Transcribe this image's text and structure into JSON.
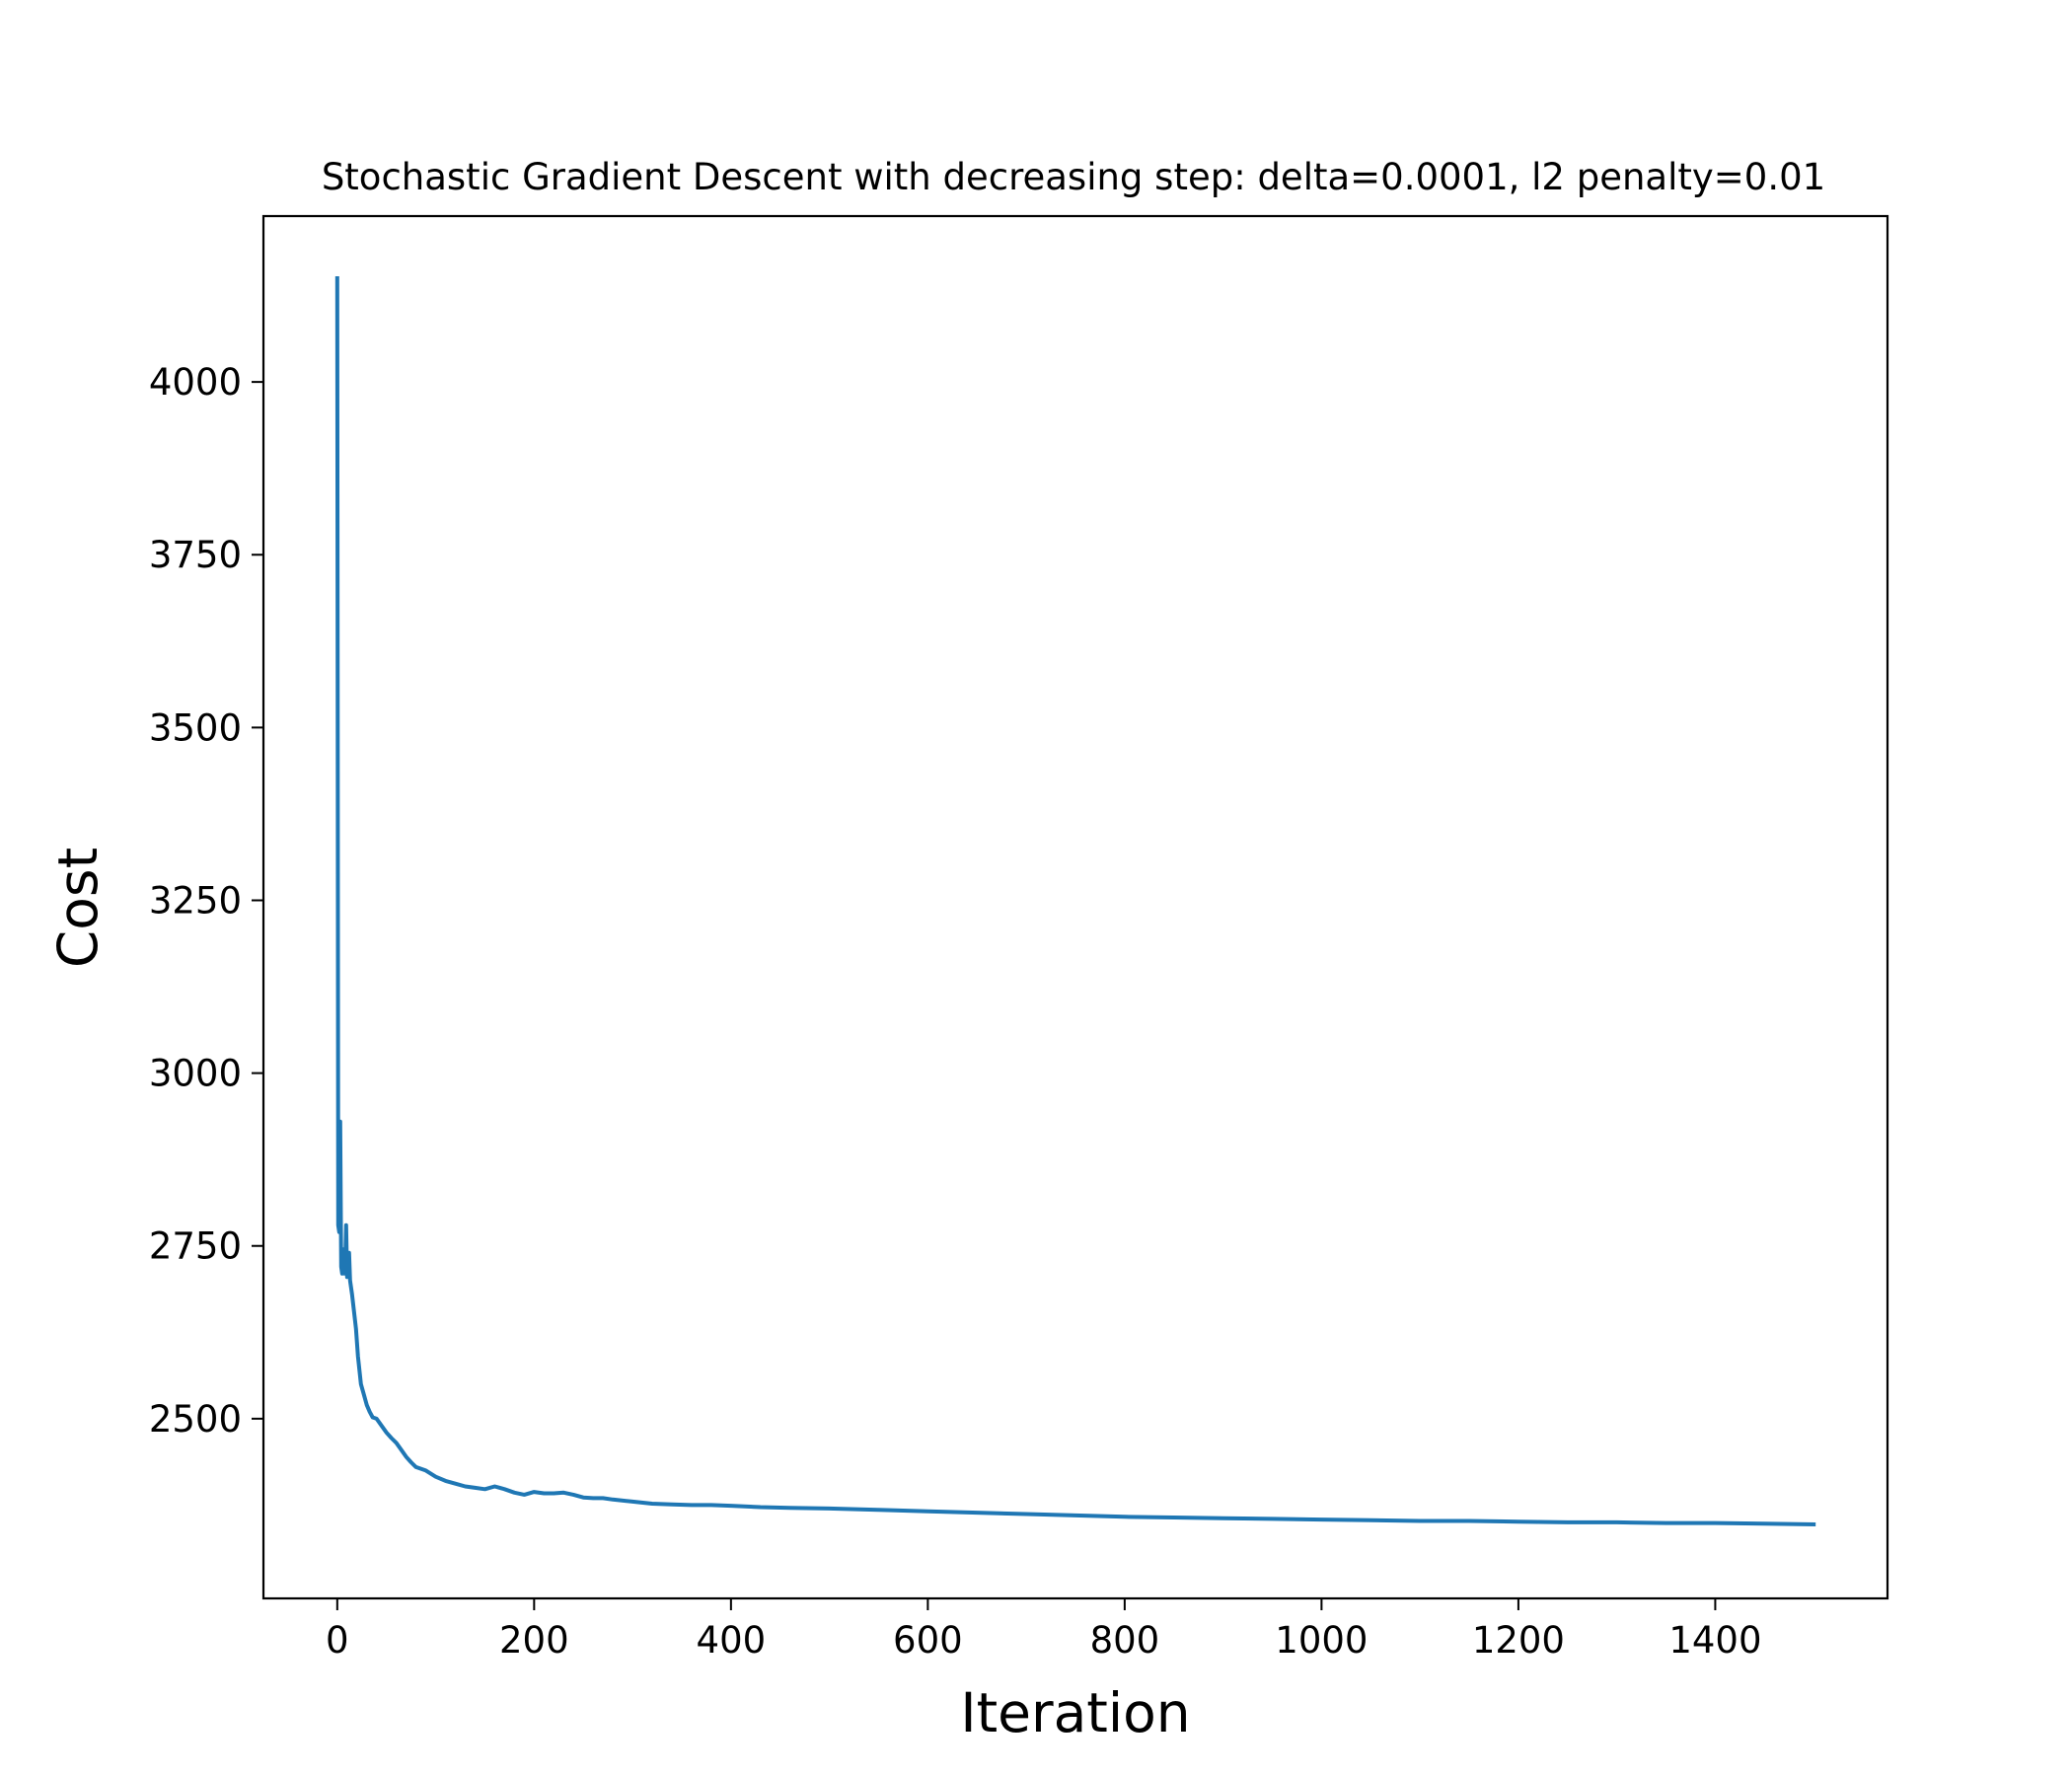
{
  "chart_data": {
    "type": "line",
    "title": "Stochastic Gradient Descent with decreasing step: delta=0.0001, l2 penalty=0.01",
    "xlabel": "Iteration",
    "ylabel": "Cost",
    "xlim": [
      -75,
      1575
    ],
    "ylim": [
      2240,
      4240
    ],
    "xticks": [
      0,
      200,
      400,
      600,
      800,
      1000,
      1200,
      1400
    ],
    "yticks": [
      2500,
      2750,
      3000,
      3250,
      3500,
      3750,
      4000
    ],
    "grid": false,
    "legend": "none",
    "series": [
      {
        "color": "#1f77b4",
        "x": [
          0,
          1,
          2,
          3,
          4,
          5,
          6,
          7,
          8,
          9,
          10,
          11,
          12,
          13,
          14,
          15,
          17,
          19,
          21,
          24,
          27,
          30,
          33,
          36,
          40,
          45,
          50,
          55,
          60,
          65,
          70,
          75,
          80,
          90,
          100,
          110,
          120,
          130,
          140,
          150,
          160,
          170,
          180,
          190,
          200,
          210,
          220,
          230,
          240,
          250,
          260,
          270,
          280,
          300,
          320,
          340,
          360,
          380,
          400,
          430,
          460,
          500,
          550,
          600,
          650,
          700,
          750,
          800,
          850,
          900,
          950,
          1000,
          1050,
          1100,
          1150,
          1200,
          1250,
          1300,
          1350,
          1400,
          1450,
          1500
        ],
        "values": [
          4150,
          2780,
          2770,
          2930,
          2720,
          2710,
          2745,
          2710,
          2720,
          2780,
          2705,
          2720,
          2740,
          2700,
          2690,
          2680,
          2655,
          2630,
          2590,
          2550,
          2535,
          2520,
          2510,
          2502,
          2500,
          2490,
          2480,
          2472,
          2465,
          2455,
          2445,
          2437,
          2430,
          2425,
          2416,
          2410,
          2406,
          2402,
          2400,
          2398,
          2402,
          2398,
          2393,
          2390,
          2394,
          2392,
          2392,
          2393,
          2390,
          2386,
          2385,
          2385,
          2383,
          2380,
          2377,
          2376,
          2375,
          2375,
          2374,
          2372,
          2371,
          2370,
          2368,
          2366,
          2364,
          2362,
          2360,
          2358,
          2357,
          2356,
          2355,
          2354,
          2353,
          2352,
          2352,
          2351,
          2350,
          2350,
          2349,
          2349,
          2348,
          2347
        ]
      }
    ]
  }
}
